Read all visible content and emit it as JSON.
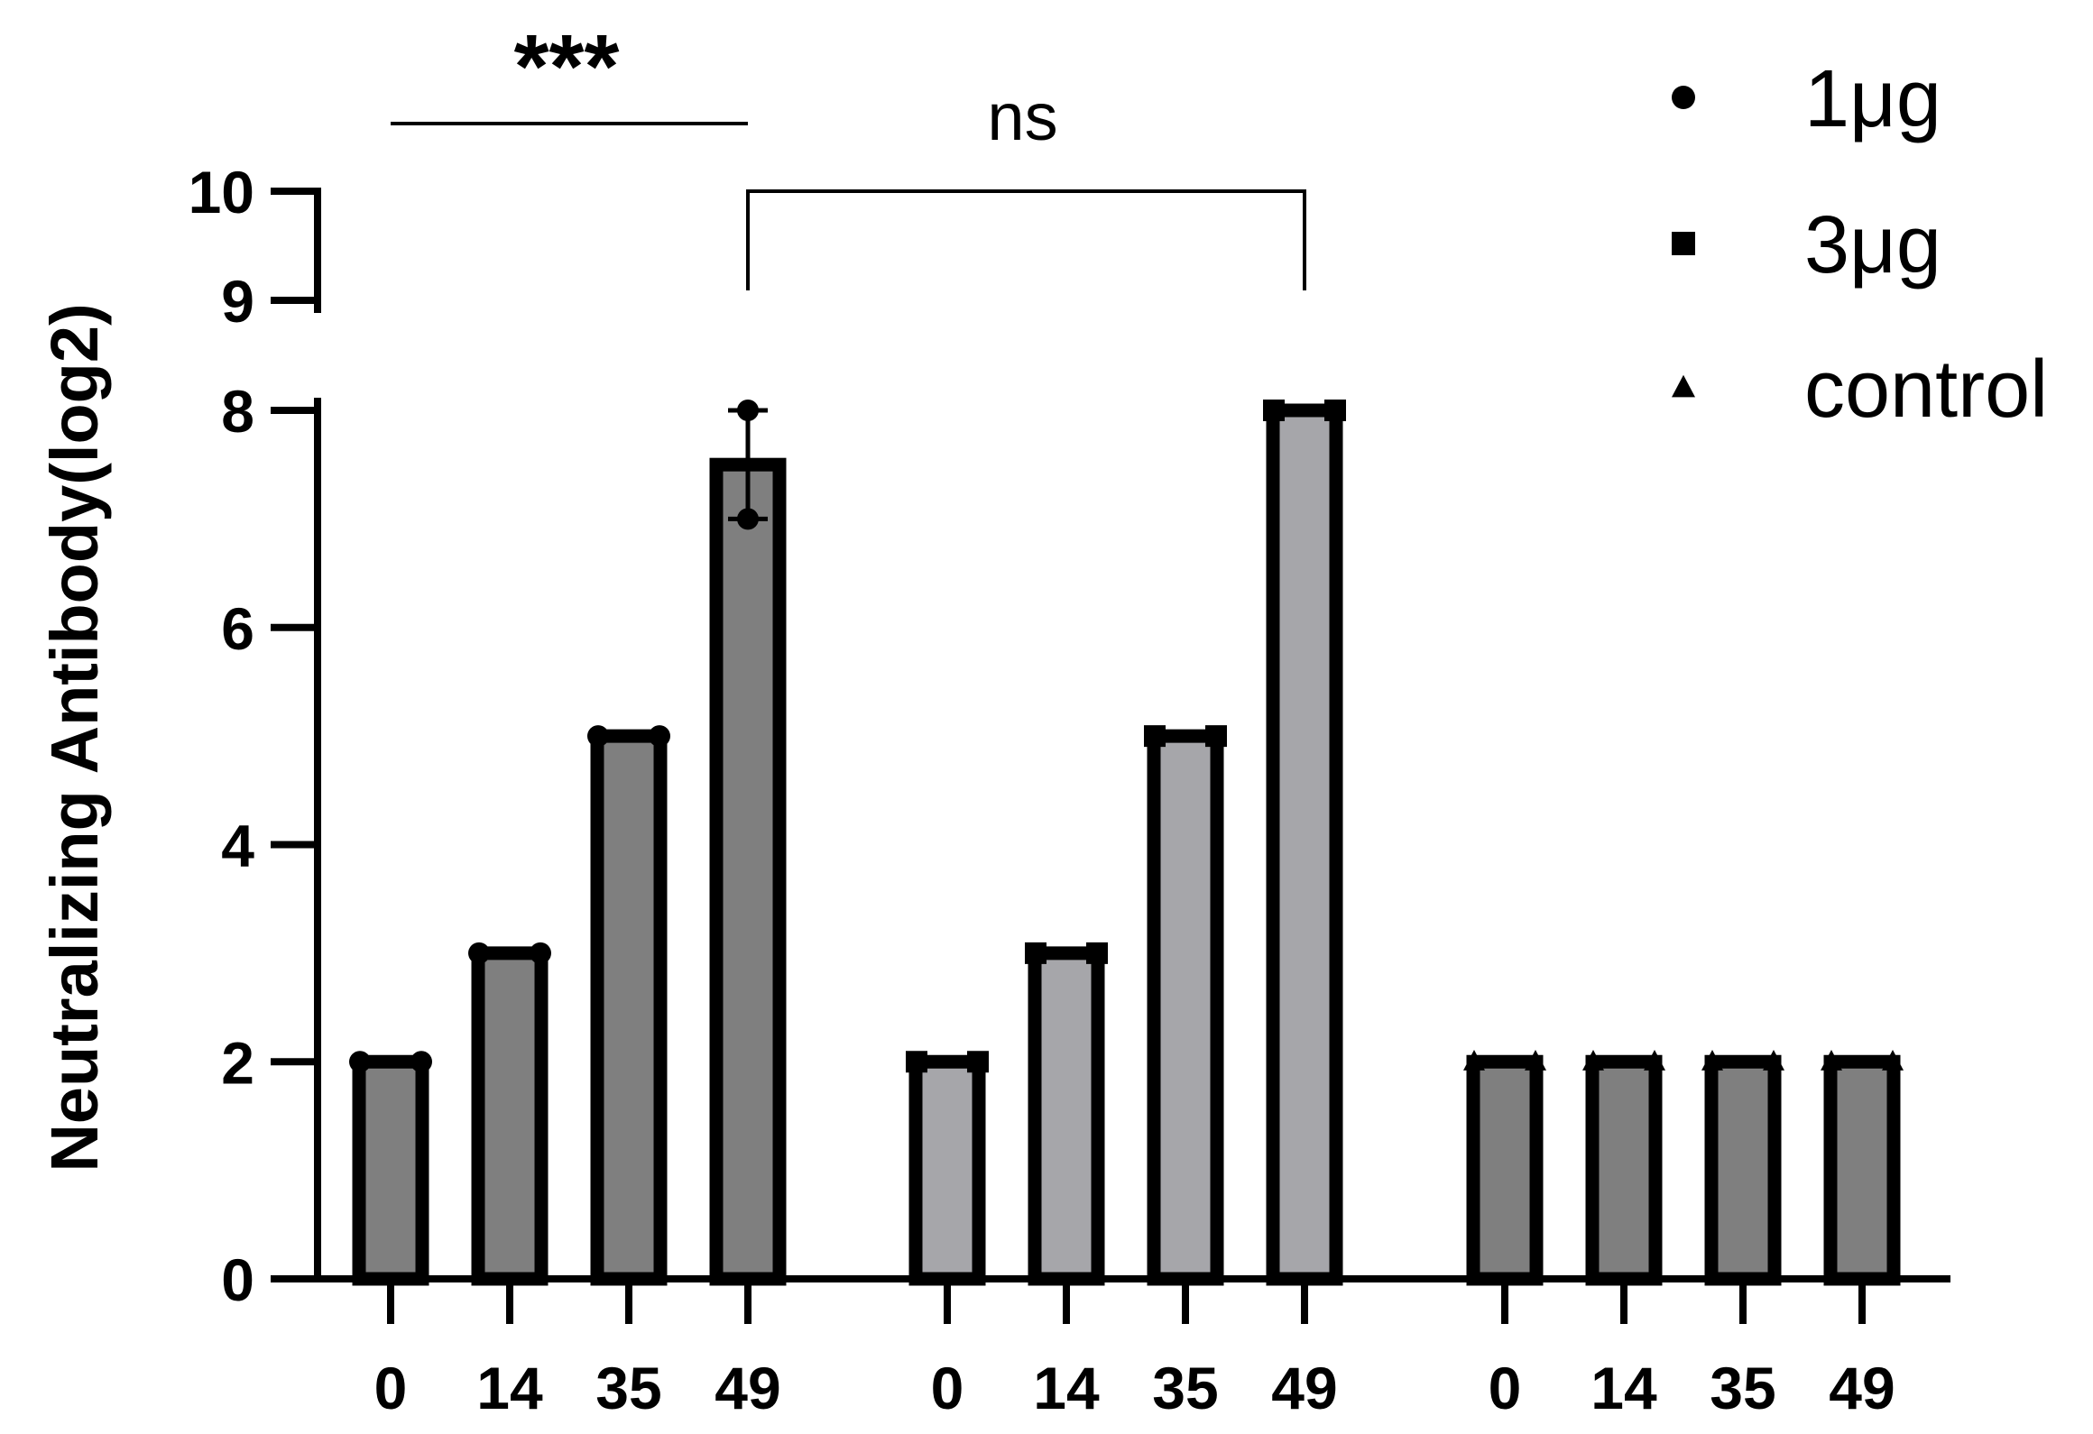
{
  "chart_data": {
    "type": "bar",
    "ylabel": "Neutralizing Antibody(log2)",
    "xlabel": "",
    "ylim": [
      0,
      10
    ],
    "yticks": [
      0,
      2,
      4,
      6,
      8,
      9,
      10
    ],
    "axis_break": true,
    "legend_position": "top-right",
    "groups": [
      {
        "name": "1μg",
        "marker": "circle",
        "bar_color": "#7f7f7f",
        "categories": [
          "0",
          "14",
          "35",
          "49"
        ],
        "values": [
          2,
          3,
          5,
          7.5
        ],
        "points": [
          [
            2,
            2
          ],
          [
            3,
            3
          ],
          [
            5,
            5
          ],
          [
            7,
            8
          ]
        ],
        "error": [
          0,
          0,
          0,
          0.5
        ]
      },
      {
        "name": "3μg",
        "marker": "square",
        "bar_color": "#a6a6aa",
        "categories": [
          "0",
          "14",
          "35",
          "49"
        ],
        "values": [
          2,
          3,
          5,
          8
        ],
        "points": [
          [
            2,
            2
          ],
          [
            3,
            3
          ],
          [
            5,
            5
          ],
          [
            8,
            8
          ]
        ],
        "error": [
          0,
          0,
          0,
          0
        ]
      },
      {
        "name": "control",
        "marker": "triangle",
        "bar_color": "#7f7f7f",
        "categories": [
          "0",
          "14",
          "35",
          "49"
        ],
        "values": [
          2,
          2,
          2,
          2
        ],
        "points": [
          [
            2,
            2
          ],
          [
            2,
            2
          ],
          [
            2,
            2
          ],
          [
            2,
            2
          ]
        ],
        "error": [
          0,
          0,
          0,
          0
        ]
      }
    ],
    "annotations": [
      {
        "label": "***",
        "type": "line",
        "from": [
          0,
          0
        ],
        "to": [
          0,
          3
        ]
      },
      {
        "label": "ns",
        "type": "bracket",
        "from": [
          0,
          3
        ],
        "to": [
          1,
          3
        ]
      }
    ]
  }
}
